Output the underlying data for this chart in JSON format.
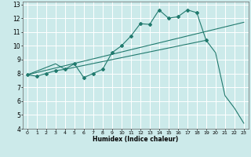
{
  "xlabel": "Humidex (Indice chaleur)",
  "bg_color": "#cceaea",
  "grid_color": "#ffffff",
  "line_color": "#217a6e",
  "xlim": [
    -0.5,
    23.5
  ],
  "ylim": [
    4,
    13.2
  ],
  "xticks": [
    0,
    1,
    2,
    3,
    4,
    5,
    6,
    7,
    8,
    9,
    10,
    11,
    12,
    13,
    14,
    15,
    16,
    17,
    18,
    19,
    20,
    21,
    22,
    23
  ],
  "yticks": [
    4,
    5,
    6,
    7,
    8,
    9,
    10,
    11,
    12,
    13
  ],
  "line1_x": [
    0,
    1,
    2,
    3,
    4,
    5,
    6,
    7,
    8,
    9,
    10,
    11,
    12,
    13,
    14,
    15,
    16,
    17,
    18,
    19,
    20,
    21,
    22,
    23
  ],
  "line1_y": [
    7.9,
    7.8,
    8.0,
    8.2,
    8.3,
    8.7,
    7.7,
    8.0,
    8.3,
    9.5,
    10.0,
    10.7,
    11.6,
    11.55,
    12.6,
    12.0,
    12.1,
    12.6,
    12.4,
    10.4,
    null,
    null,
    null,
    null
  ],
  "line2_x": [
    0,
    3,
    4,
    19,
    20,
    21,
    22,
    23
  ],
  "line2_y": [
    7.9,
    8.7,
    8.3,
    10.4,
    9.5,
    6.4,
    5.5,
    4.4
  ],
  "line3_x": [
    0,
    23
  ],
  "line3_y": [
    7.9,
    11.7
  ]
}
